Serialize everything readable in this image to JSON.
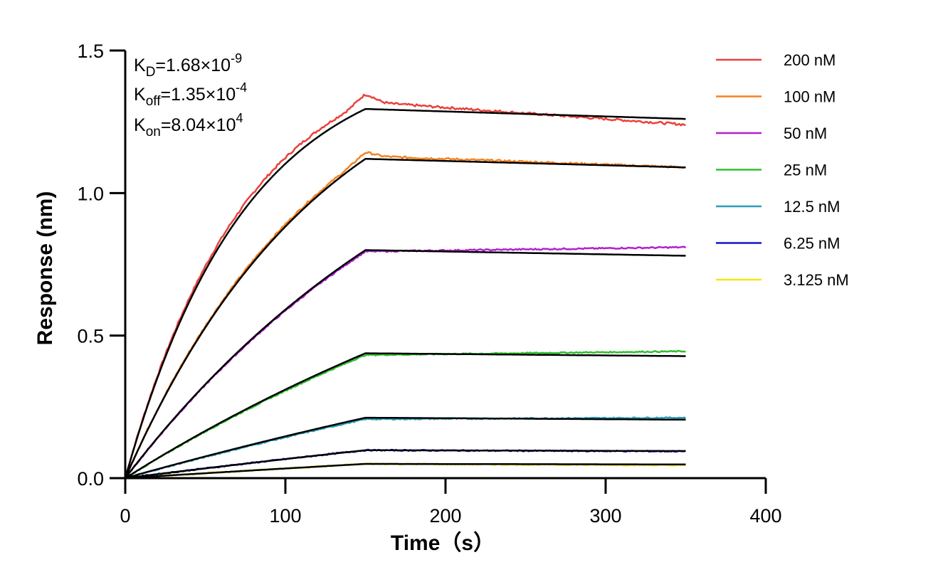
{
  "chart_data": {
    "type": "line",
    "title": "",
    "xlabel": "Time（s）",
    "ylabel": "Response (nm)",
    "xlim": [
      0,
      400
    ],
    "ylim": [
      0,
      1.5
    ],
    "x_ticks": [
      "0",
      "100",
      "200",
      "300",
      "400"
    ],
    "y_ticks": [
      "0.0",
      "0.5",
      "1.0",
      "1.5"
    ],
    "grid": false,
    "legend_position": "right",
    "association_end_s": 150,
    "end_time_s": 350,
    "kinetics": {
      "KD": {
        "main": "K",
        "sub": "D",
        "value": "=1.68×10",
        "exp": "-9"
      },
      "Koff": {
        "main": "K",
        "sub": "off",
        "value": "=1.35×10",
        "exp": "-4"
      },
      "Kon": {
        "main": "K",
        "sub": "on",
        "value": "=8.04×10",
        "exp": "4"
      }
    },
    "series": [
      {
        "name": "200 nM",
        "color": "#e8413c",
        "fit_peak": 1.295,
        "fit_end": 1.26,
        "data_peak": 1.32,
        "data_end": 1.24,
        "tau": 75
      },
      {
        "name": "100 nM",
        "color": "#f5821f",
        "fit_peak": 1.12,
        "fit_end": 1.09,
        "data_peak": 1.13,
        "data_end": 1.09,
        "tau": 125
      },
      {
        "name": "50 nM",
        "color": "#b41fd1",
        "fit_peak": 0.8,
        "fit_end": 0.78,
        "data_peak": 0.795,
        "data_end": 0.81,
        "tau": 220
      },
      {
        "name": "25 nM",
        "color": "#2fbf2f",
        "fit_peak": 0.438,
        "fit_end": 0.428,
        "data_peak": 0.432,
        "data_end": 0.445,
        "tau": 380
      },
      {
        "name": "12.5 nM",
        "color": "#2b9fb8",
        "fit_peak": 0.212,
        "fit_end": 0.205,
        "data_peak": 0.207,
        "data_end": 0.212,
        "tau": 650
      },
      {
        "name": "6.25 nM",
        "color": "#1414cc",
        "fit_peak": 0.098,
        "fit_end": 0.095,
        "data_peak": 0.098,
        "data_end": 0.094,
        "tau": 1000
      },
      {
        "name": "3.125 nM",
        "color": "#f2e614",
        "fit_peak": 0.05,
        "fit_end": 0.048,
        "data_peak": 0.05,
        "data_end": 0.045,
        "tau": 1500
      }
    ],
    "fit_color": "#000000"
  }
}
